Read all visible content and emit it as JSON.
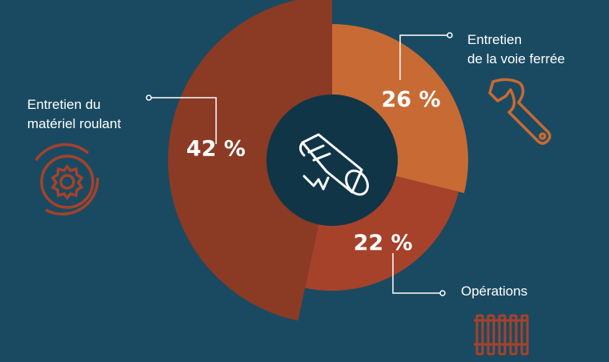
{
  "chart_data": {
    "type": "pie",
    "title": "",
    "slices": [
      {
        "label_lines": [
          "Entretien",
          "de la voie ferrée"
        ],
        "value": 26,
        "value_label": "26 %",
        "color": "#c86a34",
        "icon": "wrench-icon"
      },
      {
        "label_lines": [
          "Opérations"
        ],
        "value": 22,
        "value_label": "22 %",
        "color": "#a6412a",
        "icon": "railway-track-icon"
      },
      {
        "label_lines": [
          "Entretien du",
          "matériel roulant"
        ],
        "value": 42,
        "value_label": "42 %",
        "color": "#8b3a24",
        "icon": "wheel-gear-icon"
      }
    ],
    "center_icon": "rolled-diploma-icon",
    "colors": {
      "background": "#1a4a61",
      "center": "#0f3547",
      "icon_stroke": "#ffffff",
      "callout": "#ffffff"
    }
  }
}
